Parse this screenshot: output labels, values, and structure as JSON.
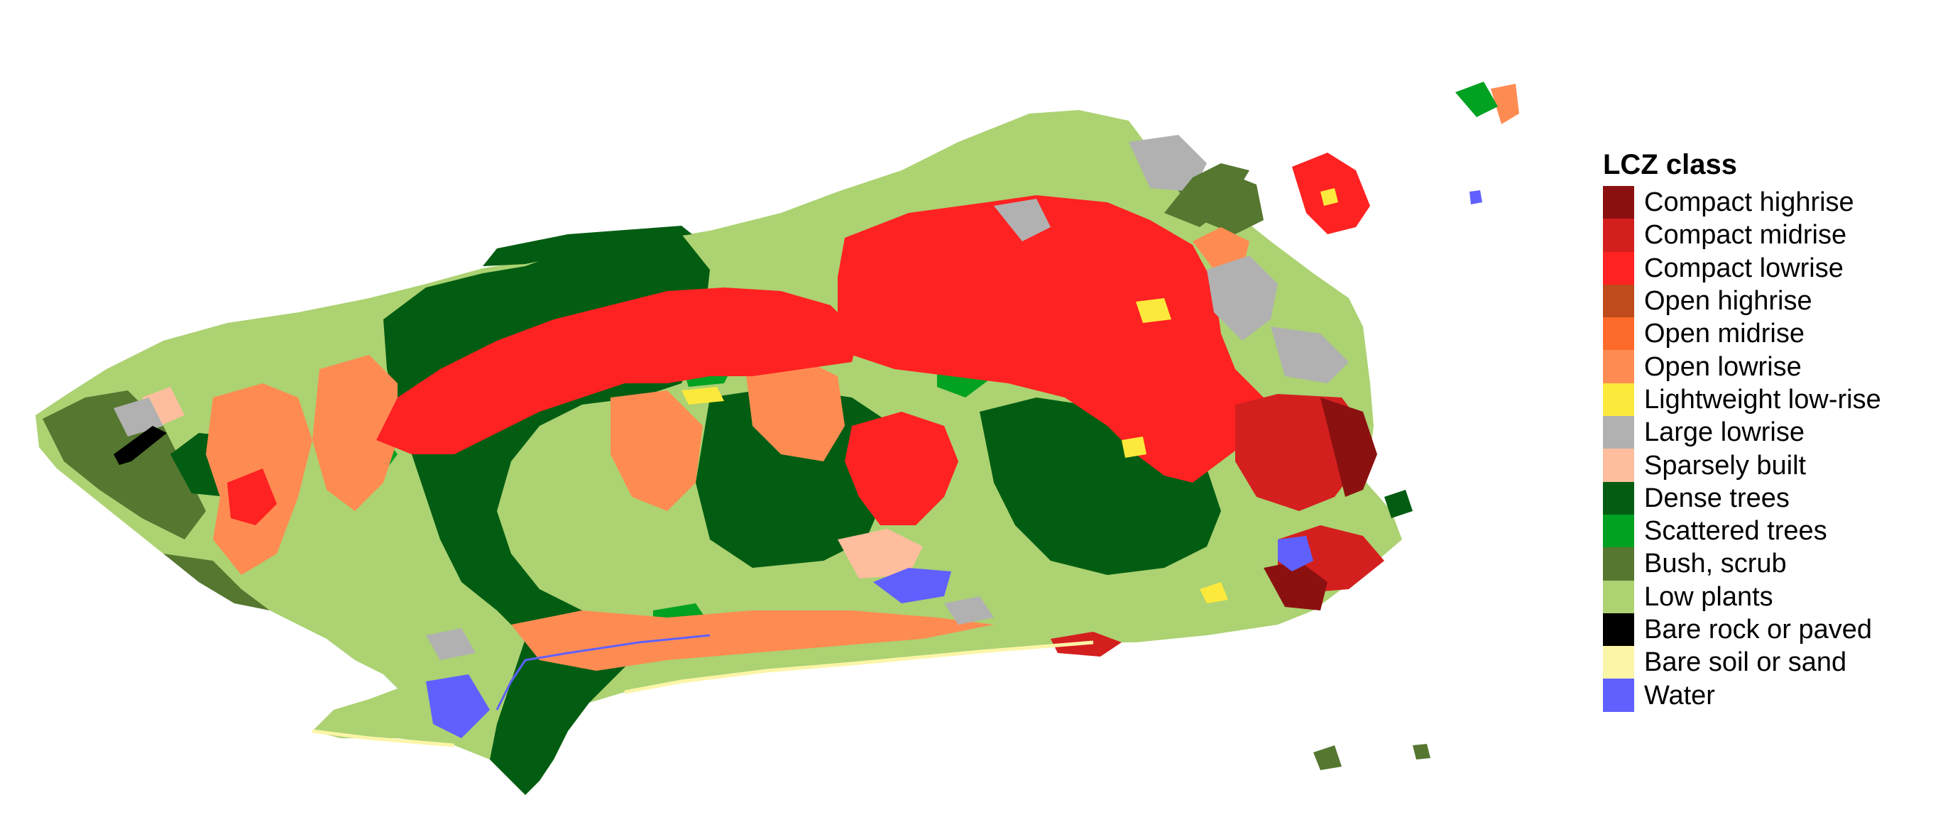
{
  "legend": {
    "title": "LCZ class",
    "items": [
      {
        "label": "Compact highrise",
        "color": "#8b1111"
      },
      {
        "label": "Compact midrise",
        "color": "#d41f1f"
      },
      {
        "label": "Compact lowrise",
        "color": "#fe2222"
      },
      {
        "label": "Open highrise",
        "color": "#bf4a1c"
      },
      {
        "label": "Open midrise",
        "color": "#fe6a2a"
      },
      {
        "label": "Open lowrise",
        "color": "#fe8c52"
      },
      {
        "label": "Lightweight low-rise",
        "color": "#fde93c"
      },
      {
        "label": "Large lowrise",
        "color": "#b1b1b1"
      },
      {
        "label": "Sparsely built",
        "color": "#febe9e"
      },
      {
        "label": "Dense trees",
        "color": "#025d12"
      },
      {
        "label": "Scattered trees",
        "color": "#01a121"
      },
      {
        "label": "Bush, scrub",
        "color": "#557730"
      },
      {
        "label": "Low plants",
        "color": "#acd272"
      },
      {
        "label": "Bare rock or paved",
        "color": "#000000"
      },
      {
        "label": "Bare soil or sand",
        "color": "#fbf5a8"
      },
      {
        "label": "Water",
        "color": "#6060fe"
      }
    ]
  }
}
